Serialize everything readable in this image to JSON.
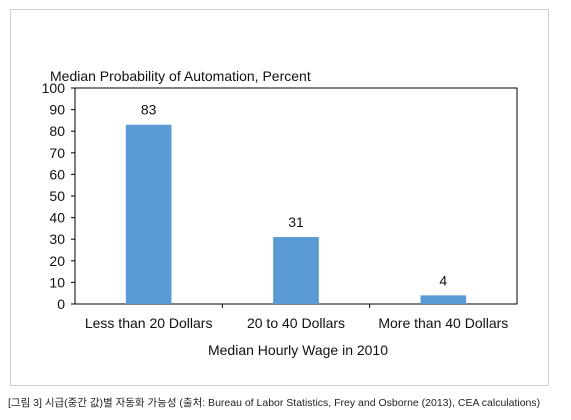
{
  "chart_data": {
    "type": "bar",
    "title": "",
    "ylabel": "Median Probability of Automation, Percent",
    "xlabel": "Median Hourly Wage in 2010",
    "categories": [
      "Less than 20 Dollars",
      "20 to 40 Dollars",
      "More than 40 Dollars"
    ],
    "values": [
      83,
      31,
      4
    ],
    "data_labels": [
      "83",
      "31",
      "4"
    ],
    "ylim": [
      0,
      100
    ],
    "yticks": [
      "0",
      "10",
      "20",
      "30",
      "40",
      "50",
      "60",
      "70",
      "80",
      "90",
      "100"
    ],
    "bar_color": "#5b9bd5",
    "grid": false,
    "legend": "none"
  },
  "caption": "[그림 3] 시급(중간 값)별 자동화 가능성 (출처: Bureau of Labor Statistics, Frey and Osborne (2013), CEA calculations)"
}
